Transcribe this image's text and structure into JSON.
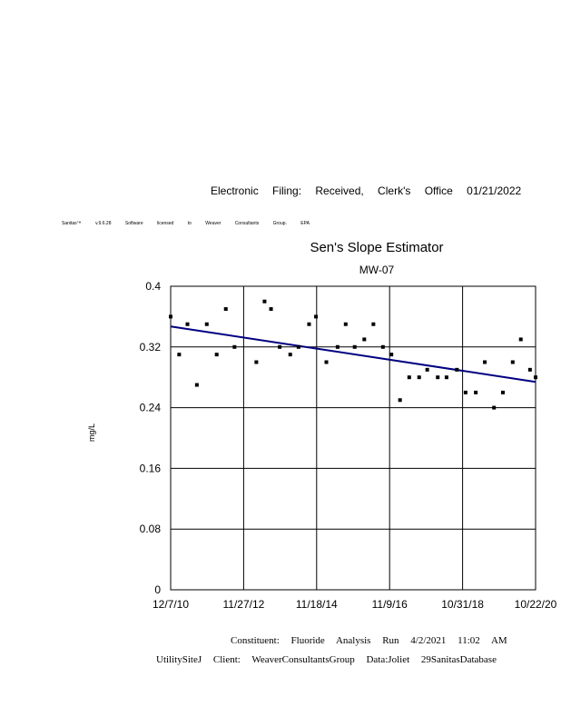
{
  "header": {
    "filing": "Electronic Filing: Received, Clerk's Office 01/21/2022"
  },
  "license_text": "Sanitas™ v.9.6.28 Software licensed to Weaver Consultants Group. EPA",
  "footer": {
    "line1": "Constituent: Fluoride Analysis Run 4/2/2021 11:02 AM",
    "line2": "UtilitySiteJ Client: WeaverConsultantsGroup Data:Joliet 29SanitasDatabase"
  },
  "chart_data": {
    "type": "scatter",
    "title": "Sen's Slope Estimator",
    "subtitle": "MW-07",
    "xlabel": "",
    "ylabel": "mg/L",
    "x_tick_labels": [
      "12/7/10",
      "11/27/12",
      "11/18/14",
      "11/9/16",
      "10/31/18",
      "10/22/20"
    ],
    "y_tick_labels": [
      "0",
      "0.08",
      "0.16",
      "0.24",
      "0.32",
      "0.4"
    ],
    "xlim": [
      "2010-12-07",
      "2020-10-22"
    ],
    "ylim": [
      0,
      0.4
    ],
    "grid": true,
    "colors": {
      "points": "#000000",
      "trend": "#000080"
    },
    "series": [
      {
        "points": [
          {
            "x": "2010-12-07",
            "y": 0.36
          },
          {
            "x": "2011-03-01",
            "y": 0.31
          },
          {
            "x": "2011-05-22",
            "y": 0.35
          },
          {
            "x": "2011-08-23",
            "y": 0.27
          },
          {
            "x": "2011-11-29",
            "y": 0.35
          },
          {
            "x": "2012-03-06",
            "y": 0.31
          },
          {
            "x": "2012-06-04",
            "y": 0.37
          },
          {
            "x": "2012-08-29",
            "y": 0.32
          },
          {
            "x": "2013-04-02",
            "y": 0.3
          },
          {
            "x": "2013-06-22",
            "y": 0.38
          },
          {
            "x": "2013-08-25",
            "y": 0.37
          },
          {
            "x": "2013-11-19",
            "y": 0.32
          },
          {
            "x": "2014-03-03",
            "y": 0.31
          },
          {
            "x": "2014-05-24",
            "y": 0.32
          },
          {
            "x": "2014-09-05",
            "y": 0.35
          },
          {
            "x": "2014-11-12",
            "y": 0.36
          },
          {
            "x": "2015-02-23",
            "y": 0.3
          },
          {
            "x": "2015-06-14",
            "y": 0.32
          },
          {
            "x": "2015-09-02",
            "y": 0.35
          },
          {
            "x": "2015-11-30",
            "y": 0.32
          },
          {
            "x": "2016-03-04",
            "y": 0.33
          },
          {
            "x": "2016-06-02",
            "y": 0.35
          },
          {
            "x": "2016-09-04",
            "y": 0.32
          },
          {
            "x": "2016-11-27",
            "y": 0.31
          },
          {
            "x": "2017-02-20",
            "y": 0.25
          },
          {
            "x": "2017-05-22",
            "y": 0.28
          },
          {
            "x": "2017-08-28",
            "y": 0.28
          },
          {
            "x": "2017-11-16",
            "y": 0.29
          },
          {
            "x": "2018-02-28",
            "y": 0.28
          },
          {
            "x": "2018-05-26",
            "y": 0.28
          },
          {
            "x": "2018-09-05",
            "y": 0.29
          },
          {
            "x": "2018-11-30",
            "y": 0.26
          },
          {
            "x": "2019-03-11",
            "y": 0.26
          },
          {
            "x": "2019-06-08",
            "y": 0.3
          },
          {
            "x": "2019-09-07",
            "y": 0.24
          },
          {
            "x": "2019-12-04",
            "y": 0.26
          },
          {
            "x": "2020-03-10",
            "y": 0.3
          },
          {
            "x": "2020-05-29",
            "y": 0.33
          },
          {
            "x": "2020-08-28",
            "y": 0.29
          },
          {
            "x": "2020-10-22",
            "y": 0.28
          }
        ]
      }
    ],
    "trend_line": {
      "x": [
        "2010-12-07",
        "2020-10-22"
      ],
      "y": [
        0.347,
        0.274
      ]
    }
  }
}
